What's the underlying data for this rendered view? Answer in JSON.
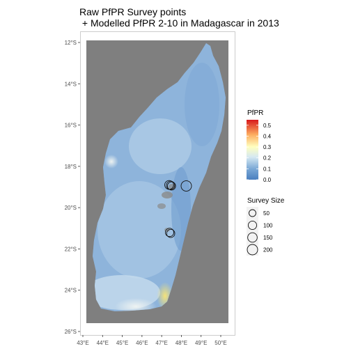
{
  "title": {
    "line1": "Raw PfPR Survey points",
    "line2": " + Modelled PfPR 2-10 in Madagascar in 2013"
  },
  "chart_data": {
    "type": "map",
    "x_axis": {
      "ticks": [
        "43°E",
        "44°E",
        "45°E",
        "46°E",
        "47°E",
        "48°E",
        "49°E",
        "50°E"
      ],
      "lim": [
        42.9,
        50.6
      ]
    },
    "y_axis": {
      "ticks": [
        "12°S",
        "14°S",
        "16°S",
        "18°S",
        "20°S",
        "22°S",
        "24°S",
        "26°S"
      ],
      "lim": [
        -26.0,
        -11.7
      ]
    },
    "panel_background": "#ffffff",
    "raster_background": "#7f7f7f",
    "fill_legend": {
      "title": "PfPR",
      "breaks": [
        "0.5",
        "0.4",
        "0.3",
        "0.2",
        "0.1",
        "0.0"
      ],
      "colors": [
        "#d7191c",
        "#fdae61",
        "#ffffbf",
        "#abd9e9",
        "#2c7bb6"
      ],
      "range": [
        0,
        0.55
      ]
    },
    "size_legend": {
      "title": "Survey Size",
      "breaks": [
        {
          "label": "50",
          "value": 50
        },
        {
          "label": "100",
          "value": 100
        },
        {
          "label": "150",
          "value": 150
        },
        {
          "label": "200",
          "value": 200
        }
      ]
    },
    "survey_points": [
      {
        "lon": 47.38,
        "lat": -18.9,
        "size": 120
      },
      {
        "lon": 47.45,
        "lat": -18.92,
        "size": 100
      },
      {
        "lon": 47.5,
        "lat": -18.95,
        "size": 90
      },
      {
        "lon": 48.25,
        "lat": -18.95,
        "size": 200
      },
      {
        "lon": 47.4,
        "lat": -21.2,
        "size": 100
      },
      {
        "lon": 47.46,
        "lat": -21.25,
        "size": 90
      }
    ]
  }
}
